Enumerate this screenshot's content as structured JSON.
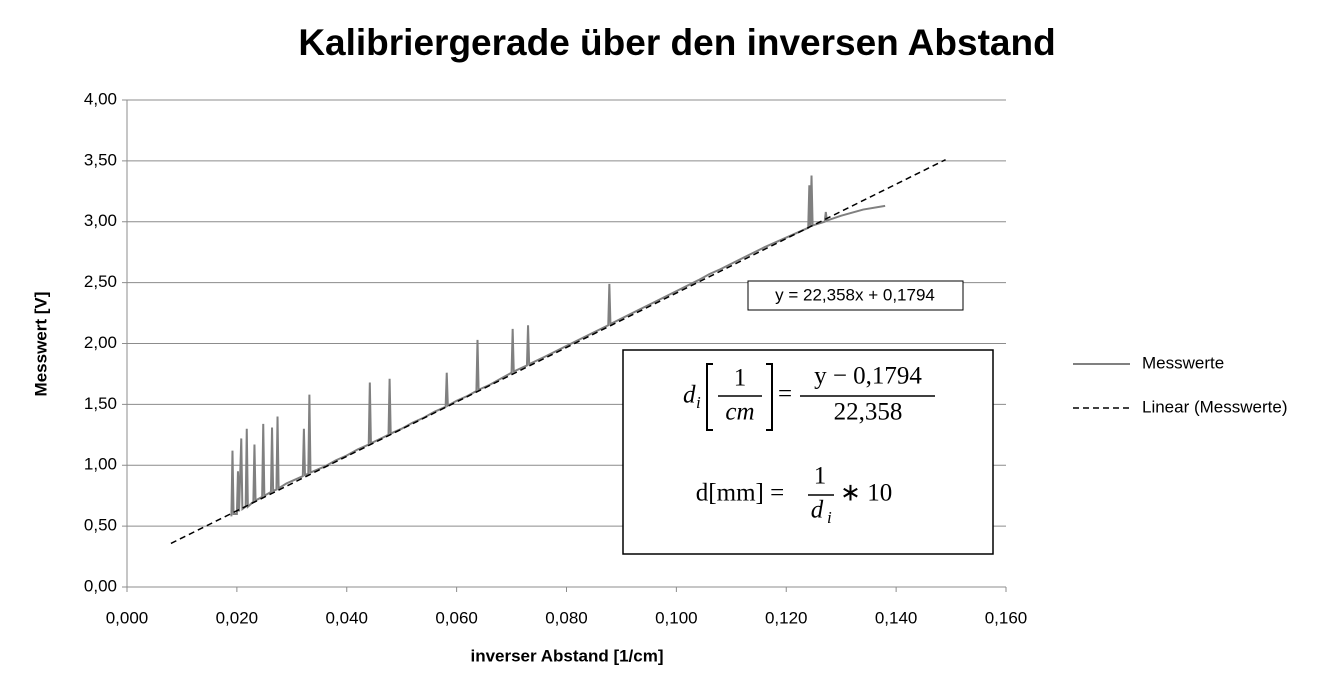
{
  "chart_data": {
    "type": "line",
    "title": "Kalibriergerade über den inversen Abstand",
    "x_label": "inverser Abstand [1/cm]",
    "y_label": "Messwert [V]",
    "xlim": [
      0,
      0.16
    ],
    "xticks": [
      {
        "value": 0,
        "label": "0,000"
      },
      {
        "value": 0.02,
        "label": "0,020"
      },
      {
        "value": 0.04,
        "label": "0,040"
      },
      {
        "value": 0.06,
        "label": "0,060"
      },
      {
        "value": 0.08,
        "label": "0,080"
      },
      {
        "value": 0.1,
        "label": "0,100"
      },
      {
        "value": 0.12,
        "label": "0,120"
      },
      {
        "value": 0.14,
        "label": "0,140"
      },
      {
        "value": 0.16,
        "label": "0,160"
      }
    ],
    "ylim": [
      0,
      4
    ],
    "yticks": [
      {
        "value": 0,
        "label": "0,00"
      },
      {
        "value": 0.5,
        "label": "0,50"
      },
      {
        "value": 1,
        "label": "1,00"
      },
      {
        "value": 1.5,
        "label": "1,50"
      },
      {
        "value": 2,
        "label": "2,00"
      },
      {
        "value": 2.5,
        "label": "2,50"
      },
      {
        "value": 3,
        "label": "3,00"
      },
      {
        "value": 3.5,
        "label": "3,50"
      },
      {
        "value": 4,
        "label": "4,00"
      }
    ],
    "grid": true,
    "legend": "right",
    "series": [
      {
        "name": "Messwerte",
        "color": "#808080",
        "dash": false,
        "x": [
          0.019,
          0.0192,
          0.0194,
          0.02,
          0.0202,
          0.0204,
          0.0208,
          0.021,
          0.0216,
          0.0218,
          0.022,
          0.023,
          0.0232,
          0.0234,
          0.0246,
          0.0248,
          0.025,
          0.0262,
          0.0264,
          0.0266,
          0.0272,
          0.0274,
          0.0276,
          0.029,
          0.03,
          0.032,
          0.0322,
          0.0324,
          0.033,
          0.0332,
          0.0334,
          0.036,
          0.038,
          0.04,
          0.042,
          0.044,
          0.0442,
          0.0444,
          0.0476,
          0.0478,
          0.048,
          0.05,
          0.052,
          0.054,
          0.056,
          0.058,
          0.0582,
          0.0584,
          0.06,
          0.062,
          0.0636,
          0.0638,
          0.064,
          0.066,
          0.068,
          0.07,
          0.0702,
          0.0704,
          0.0728,
          0.073,
          0.0732,
          0.076,
          0.08,
          0.084,
          0.0876,
          0.0878,
          0.088,
          0.092,
          0.096,
          0.1,
          0.104,
          0.106,
          0.108,
          0.112,
          0.116,
          0.12,
          0.124,
          0.1242,
          0.1244,
          0.1246,
          0.1248,
          0.127,
          0.1272,
          0.1274,
          0.13,
          0.134,
          0.138
        ],
        "values": [
          0.58,
          1.12,
          0.6,
          0.6,
          0.95,
          0.62,
          1.22,
          0.64,
          0.66,
          1.3,
          0.66,
          0.7,
          1.17,
          0.71,
          0.74,
          1.34,
          0.75,
          0.78,
          1.31,
          0.79,
          0.8,
          1.4,
          0.81,
          0.85,
          0.87,
          0.91,
          1.3,
          0.92,
          0.93,
          1.58,
          0.94,
          0.99,
          1.04,
          1.08,
          1.13,
          1.17,
          1.68,
          1.18,
          1.25,
          1.71,
          1.26,
          1.3,
          1.35,
          1.39,
          1.44,
          1.48,
          1.76,
          1.49,
          1.53,
          1.57,
          1.61,
          2.03,
          1.62,
          1.66,
          1.71,
          1.76,
          2.12,
          1.77,
          1.82,
          2.15,
          1.83,
          1.89,
          1.98,
          2.07,
          2.15,
          2.49,
          2.16,
          2.25,
          2.34,
          2.43,
          2.52,
          2.57,
          2.61,
          2.7,
          2.79,
          2.87,
          2.95,
          3.3,
          2.96,
          3.38,
          2.97,
          3.0,
          3.08,
          3.01,
          3.05,
          3.1,
          3.13
        ]
      },
      {
        "name": "Linear (Messwerte)",
        "color": "#000000",
        "dash": true,
        "x": [
          0.008,
          0.149
        ],
        "values": [
          0.358,
          3.51
        ]
      }
    ],
    "equation": "y = 22,358x + 0,1794",
    "formula": {
      "lhs1": "d",
      "lhs1_sub": "i",
      "unit_num": "1",
      "unit_den": "cm",
      "eq1": "=",
      "num1": "y − 0,1794",
      "den1": "22,358",
      "lhs2": "d[mm] =",
      "num2": "1",
      "den2": "d",
      "den2_sub": "i",
      "rest2": "∗ 10"
    }
  }
}
